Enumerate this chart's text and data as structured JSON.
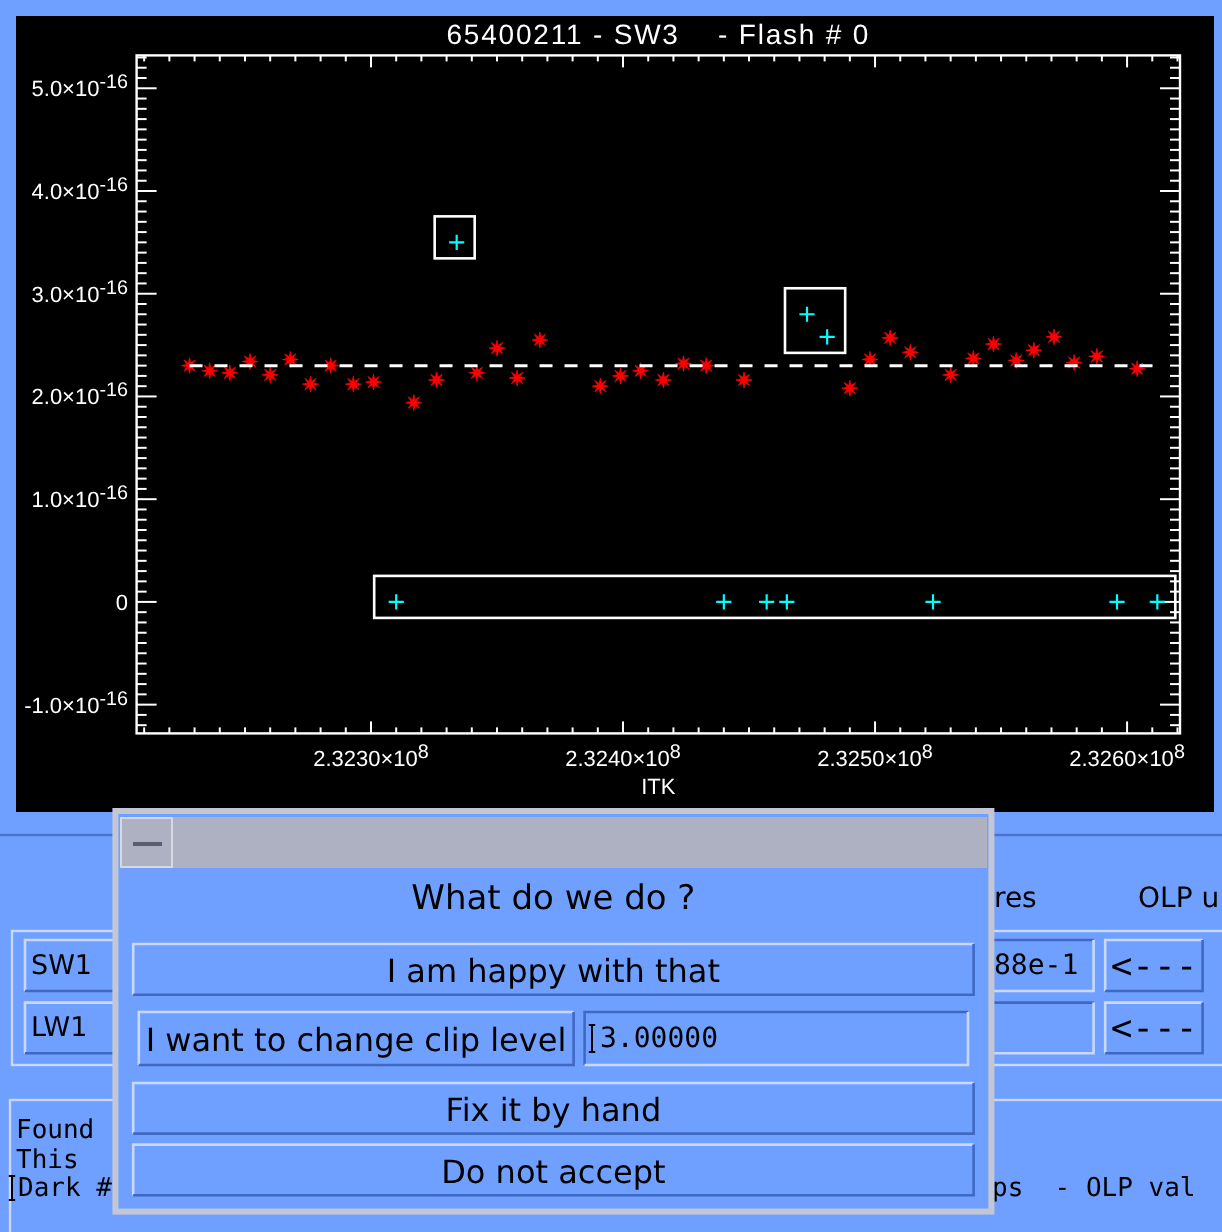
{
  "chart_data": [
    {
      "type": "scatter",
      "title": "65400211 - SW3    - Flash # 0",
      "xlabel": "ITK",
      "xlim": [
        232207000,
        232621000
      ],
      "xticks": [
        {
          "value": 232210000,
          "label": null
        },
        {
          "value": 232220000,
          "label": null
        },
        {
          "value": 232230000,
          "label": null
        },
        {
          "value": 232240000,
          "label": null
        },
        {
          "value": 232250000,
          "label": null
        },
        {
          "value": 232260000,
          "label": null
        },
        {
          "value": 232270000,
          "label": null
        },
        {
          "value": 232280000,
          "label": null
        },
        {
          "value": 232290000,
          "label": null
        },
        {
          "value": 232300000,
          "label": "2.3230×10$^{8}$"
        },
        {
          "value": 232310000,
          "label": null
        },
        {
          "value": 232320000,
          "label": null
        },
        {
          "value": 232330000,
          "label": null
        },
        {
          "value": 232340000,
          "label": null
        },
        {
          "value": 232350000,
          "label": null
        },
        {
          "value": 232360000,
          "label": null
        },
        {
          "value": 232370000,
          "label": null
        },
        {
          "value": 232380000,
          "label": null
        },
        {
          "value": 232390000,
          "label": null
        },
        {
          "value": 232400000,
          "label": "2.3240×10$^{8}$"
        },
        {
          "value": 232410000,
          "label": null
        },
        {
          "value": 232420000,
          "label": null
        },
        {
          "value": 232430000,
          "label": null
        },
        {
          "value": 232440000,
          "label": null
        },
        {
          "value": 232450000,
          "label": null
        },
        {
          "value": 232460000,
          "label": null
        },
        {
          "value": 232470000,
          "label": null
        },
        {
          "value": 232480000,
          "label": null
        },
        {
          "value": 232490000,
          "label": null
        },
        {
          "value": 232500000,
          "label": "2.3250×10$^{8}$"
        },
        {
          "value": 232510000,
          "label": null
        },
        {
          "value": 232520000,
          "label": null
        },
        {
          "value": 232530000,
          "label": null
        },
        {
          "value": 232540000,
          "label": null
        },
        {
          "value": 232550000,
          "label": null
        },
        {
          "value": 232560000,
          "label": null
        },
        {
          "value": 232570000,
          "label": null
        },
        {
          "value": 232580000,
          "label": null
        },
        {
          "value": 232590000,
          "label": null
        },
        {
          "value": 232600000,
          "label": "2.3260×10$^{8}$"
        },
        {
          "value": 232610000,
          "label": null
        },
        {
          "value": 232620000,
          "label": null
        }
      ],
      "ylim": [
        -1.28e-16,
        5.32e-16
      ],
      "yticks": [
        {
          "value": -1.2e-16,
          "label": null
        },
        {
          "value": -1.1e-16,
          "label": null
        },
        {
          "value": -1e-16,
          "label": "-1.0×10$^{-16}$"
        },
        {
          "value": -9e-17,
          "label": null
        },
        {
          "value": -8e-17,
          "label": null
        },
        {
          "value": -7e-17,
          "label": null
        },
        {
          "value": -6e-17,
          "label": null
        },
        {
          "value": -5e-17,
          "label": null
        },
        {
          "value": -4e-17,
          "label": null
        },
        {
          "value": -3e-17,
          "label": null
        },
        {
          "value": -2e-17,
          "label": null
        },
        {
          "value": -1e-17,
          "label": null
        },
        0,
        {
          "value": 1e-17,
          "label": null
        },
        {
          "value": 2e-17,
          "label": null
        },
        {
          "value": 3e-17,
          "label": null
        },
        {
          "value": 4e-17,
          "label": null
        },
        {
          "value": 5e-17,
          "label": null
        },
        {
          "value": 6e-17,
          "label": null
        },
        {
          "value": 7e-17,
          "label": null
        },
        {
          "value": 8e-17,
          "label": null
        },
        {
          "value": 9e-17,
          "label": null
        },
        {
          "value": 1e-16,
          "label": "1.0×10$^{-16}$"
        },
        {
          "value": 1.1e-16,
          "label": null
        },
        {
          "value": 1.2e-16,
          "label": null
        },
        {
          "value": 1.3e-16,
          "label": null
        },
        {
          "value": 1.4e-16,
          "label": null
        },
        {
          "value": 1.5e-16,
          "label": null
        },
        {
          "value": 1.6e-16,
          "label": null
        },
        {
          "value": 1.7e-16,
          "label": null
        },
        {
          "value": 1.8e-16,
          "label": null
        },
        {
          "value": 1.9e-16,
          "label": null
        },
        {
          "value": 2e-16,
          "label": "2.0×10$^{-16}$"
        },
        {
          "value": 2.1e-16,
          "label": null
        },
        {
          "value": 2.2e-16,
          "label": null
        },
        {
          "value": 2.3e-16,
          "label": null
        },
        {
          "value": 2.4e-16,
          "label": null
        },
        {
          "value": 2.5e-16,
          "label": null
        },
        {
          "value": 2.6e-16,
          "label": null
        },
        {
          "value": 2.7e-16,
          "label": null
        },
        {
          "value": 2.8e-16,
          "label": null
        },
        {
          "value": 2.9e-16,
          "label": null
        },
        {
          "value": 3e-16,
          "label": "3.0×10$^{-16}$"
        },
        {
          "value": 3.1e-16,
          "label": null
        },
        {
          "value": 3.2e-16,
          "label": null
        },
        {
          "value": 3.3e-16,
          "label": null
        },
        {
          "value": 3.4e-16,
          "label": null
        },
        {
          "value": 3.5e-16,
          "label": null
        },
        {
          "value": 3.6e-16,
          "label": null
        },
        {
          "value": 3.7e-16,
          "label": null
        },
        {
          "value": 3.8e-16,
          "label": null
        },
        {
          "value": 3.9e-16,
          "label": null
        },
        {
          "value": 4e-16,
          "label": "4.0×10$^{-16}$"
        },
        {
          "value": 4.1e-16,
          "label": null
        },
        {
          "value": 4.2e-16,
          "label": null
        },
        {
          "value": 4.3e-16,
          "label": null
        },
        {
          "value": 4.4e-16,
          "label": null
        },
        {
          "value": 4.5e-16,
          "label": null
        },
        {
          "value": 4.6e-16,
          "label": null
        },
        {
          "value": 4.7e-16,
          "label": null
        },
        {
          "value": 4.8e-16,
          "label": null
        },
        {
          "value": 4.9e-16,
          "label": null
        },
        {
          "value": 5e-16,
          "label": "5.0×10$^{-16}$"
        },
        {
          "value": 5.1e-16,
          "label": null
        },
        {
          "value": 5.2e-16,
          "label": null
        },
        {
          "value": 5.3e-16,
          "label": null
        }
      ],
      "series": [
        {
          "type": "scatter",
          "color": "#ff0000",
          "marker": "star",
          "x": [
            232228000,
            232236000,
            232244000,
            232252000,
            232260000,
            232268000,
            232276000,
            232284000,
            232293000,
            232301000,
            232317000,
            232326000,
            232342000,
            232350000,
            232358000,
            232367000,
            232391000,
            232399000,
            232407000,
            232416000,
            232424000,
            232433000,
            232448000,
            232490000,
            232498000,
            232506000,
            232514000,
            232530000,
            232539000,
            232547000,
            232556000,
            232563000,
            232571000,
            232579000,
            232588000,
            232604000
          ],
          "values": [
            2.3e-16,
            2.25e-16,
            2.23e-16,
            2.34e-16,
            2.21e-16,
            2.36e-16,
            2.12e-16,
            2.3e-16,
            2.12e-16,
            2.14e-16,
            1.94e-16,
            2.16e-16,
            2.23e-16,
            2.47e-16,
            2.18e-16,
            2.55e-16,
            2.1e-16,
            2.2e-16,
            2.25e-16,
            2.16e-16,
            2.32e-16,
            2.3e-16,
            2.16e-16,
            2.08e-16,
            2.36e-16,
            2.57e-16,
            2.43e-16,
            2.21e-16,
            2.37e-16,
            2.51e-16,
            2.35e-16,
            2.45e-16,
            2.58e-16,
            2.33e-16,
            2.39e-16,
            2.27e-16
          ]
        },
        {
          "type": "line",
          "color": "#ffffff",
          "line_style": "dashed",
          "x": [
            232228000,
            232612000
          ],
          "values": [
            2.3e-16,
            2.3e-16
          ]
        },
        {
          "type": "scatter",
          "color": "#00ffff",
          "marker": "cross",
          "x": [
            232334000
          ],
          "values": [
            3.5e-16
          ]
        },
        {
          "type": "scatter",
          "color": "#00ffff",
          "marker": "cross",
          "x": [
            232473000,
            232481000
          ],
          "values": [
            2.8e-16,
            2.58e-16
          ]
        },
        {
          "type": "scatter",
          "color": "#00ffff",
          "marker": "cross",
          "x": [
            232310000,
            232440000,
            232457000,
            232465000,
            232523000,
            232596000,
            232612000
          ],
          "values": [
            0,
            0,
            0,
            0,
            0,
            0,
            0
          ]
        }
      ]
    },
    {
      "type": "other",
      "title": "What do we do ?",
      "annotations": [
        "I am happy with that",
        "I want to change clip level",
        "3.00000",
        "Fix it by hand",
        "Do not accept",
        "SW1",
        "LW1",
        "res",
        "OLP u",
        "88e-1",
        "<---",
        "<---",
        "Found",
        "This",
        "Dark #",
        "ps  - OLP val"
      ]
    }
  ]
}
